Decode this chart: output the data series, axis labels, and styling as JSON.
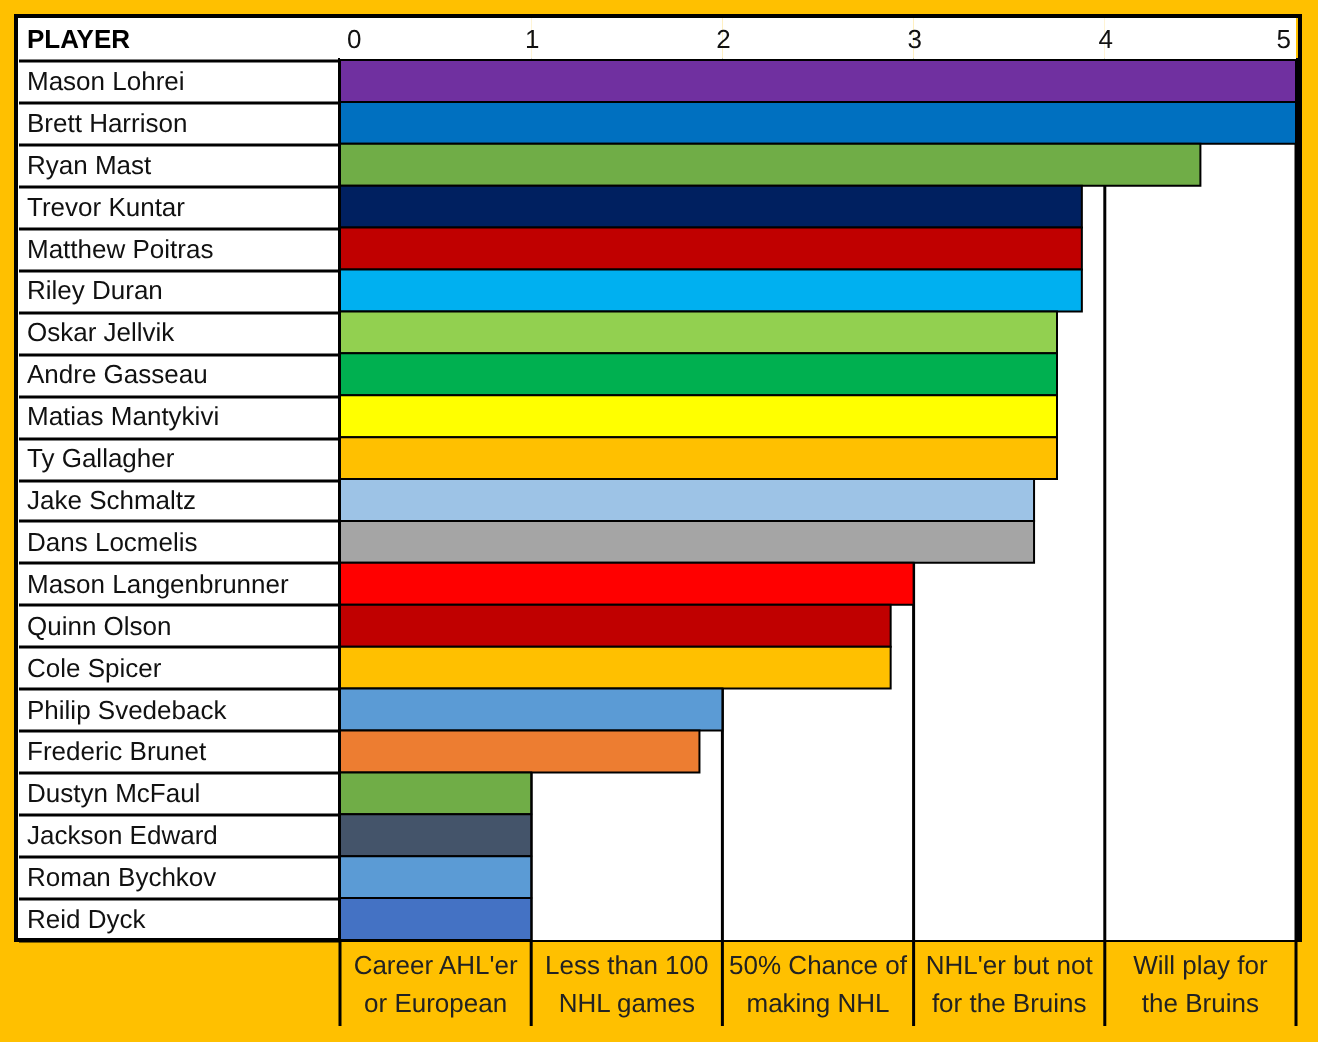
{
  "chart_data": {
    "type": "bar",
    "orientation": "horizontal",
    "ylabel": "PLAYER",
    "categories": [
      "Mason Lohrei",
      "Brett Harrison",
      "Ryan Mast",
      "Trevor Kuntar",
      "Matthew Poitras",
      "Riley Duran",
      "Oskar Jellvik",
      "Andre Gasseau",
      "Matias Mantykivi",
      "Ty Gallagher",
      "Jake Schmaltz",
      "Dans Locmelis",
      "Mason Langenbrunner",
      "Quinn Olson",
      "Cole Spicer",
      "Philip Svedeback",
      "Frederic Brunet",
      "Dustyn McFaul",
      "Jackson Edward",
      "Roman Bychkov",
      "Reid Dyck"
    ],
    "values": [
      5,
      5,
      4.5,
      3.88,
      3.88,
      3.88,
      3.75,
      3.75,
      3.75,
      3.75,
      3.63,
      3.63,
      3,
      2.88,
      2.88,
      2,
      1.88,
      1,
      1,
      1,
      1
    ],
    "colors": [
      "#7030a0",
      "#0070c0",
      "#70ad47",
      "#002060",
      "#c00000",
      "#00b0f0",
      "#92d050",
      "#00b050",
      "#ffff00",
      "#ffc000",
      "#9dc3e6",
      "#a5a5a5",
      "#ff0000",
      "#c00000",
      "#ffc000",
      "#5b9bd5",
      "#ed7d31",
      "#70ad47",
      "#44546a",
      "#5b9bd5",
      "#4472c4"
    ],
    "xlim": [
      0,
      5
    ],
    "xticks": [
      0,
      1,
      2,
      3,
      4,
      5
    ],
    "grid": "x",
    "bands": [
      {
        "axis": "x",
        "from": 0,
        "to": 1,
        "label": "Career AHL'er or European",
        "color": "#ffffff"
      },
      {
        "axis": "x",
        "from": 1,
        "to": 2,
        "label": "Less than 100 NHL games",
        "color": "#ffffff"
      },
      {
        "axis": "x",
        "from": 2,
        "to": 3,
        "label": "50% Chance of making NHL",
        "color": "#ffffff"
      },
      {
        "axis": "x",
        "from": 3,
        "to": 4,
        "label": "NHL'er but not for the Bruins",
        "color": "#ffffff"
      },
      {
        "axis": "x",
        "from": 4,
        "to": 5,
        "label": "Will play for the Bruins",
        "color": "#ffffff"
      }
    ]
  }
}
